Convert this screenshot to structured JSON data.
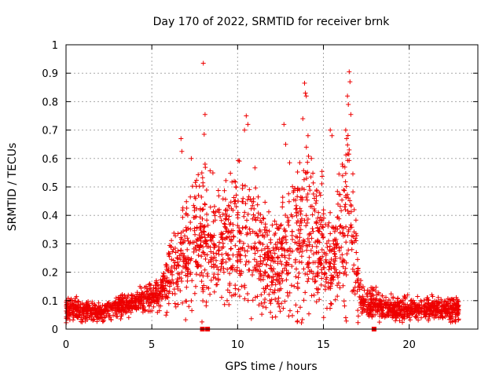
{
  "chart_data": {
    "type": "scatter",
    "title": "Day 170 of 2022, SRMTID for receiver brnk",
    "xlabel": "GPS time / hours",
    "ylabel": "SRMTID / TECUs",
    "xlim": [
      0,
      24
    ],
    "ylim": [
      0,
      1
    ],
    "x_ticks": [
      0,
      5,
      10,
      15,
      20
    ],
    "y_ticks": [
      0,
      0.1,
      0.2,
      0.3,
      0.4,
      0.5,
      0.6,
      0.7,
      0.8,
      0.9,
      1
    ],
    "x_tick_labels": [
      "0",
      "5",
      "10",
      "15",
      "20"
    ],
    "y_tick_labels": [
      "0",
      "0.1",
      "0.2",
      "0.3",
      "0.4",
      "0.5",
      "0.6",
      "0.7",
      "0.8",
      "0.9",
      "1"
    ],
    "grid": true,
    "marker": "+",
    "color": "#ee0000",
    "time_span_hours": [
      0,
      22.9
    ],
    "envelope": [
      {
        "t": 0.0,
        "median": 0.07,
        "spread": 0.04
      },
      {
        "t": 2.0,
        "median": 0.06,
        "spread": 0.035
      },
      {
        "t": 4.0,
        "median": 0.09,
        "spread": 0.04
      },
      {
        "t": 5.5,
        "median": 0.13,
        "spread": 0.06
      },
      {
        "t": 6.5,
        "median": 0.22,
        "spread": 0.15
      },
      {
        "t": 7.5,
        "median": 0.32,
        "spread": 0.22
      },
      {
        "t": 9.0,
        "median": 0.28,
        "spread": 0.2
      },
      {
        "t": 10.5,
        "median": 0.35,
        "spread": 0.26
      },
      {
        "t": 12.0,
        "median": 0.2,
        "spread": 0.15
      },
      {
        "t": 14.0,
        "median": 0.36,
        "spread": 0.3
      },
      {
        "t": 15.5,
        "median": 0.22,
        "spread": 0.15
      },
      {
        "t": 16.5,
        "median": 0.4,
        "spread": 0.3
      },
      {
        "t": 17.2,
        "median": 0.1,
        "spread": 0.06
      },
      {
        "t": 19.0,
        "median": 0.07,
        "spread": 0.04
      },
      {
        "t": 22.9,
        "median": 0.07,
        "spread": 0.04
      }
    ],
    "points_per_hour": 110,
    "notable_points": [
      {
        "x": 8.0,
        "y": 0.935
      },
      {
        "x": 8.1,
        "y": 0.755
      },
      {
        "x": 8.05,
        "y": 0.685
      },
      {
        "x": 6.7,
        "y": 0.67
      },
      {
        "x": 6.75,
        "y": 0.625
      },
      {
        "x": 7.3,
        "y": 0.6
      },
      {
        "x": 8.1,
        "y": 0.58
      },
      {
        "x": 10.5,
        "y": 0.75
      },
      {
        "x": 10.6,
        "y": 0.72
      },
      {
        "x": 10.4,
        "y": 0.7
      },
      {
        "x": 9.9,
        "y": 0.5
      },
      {
        "x": 12.7,
        "y": 0.72
      },
      {
        "x": 12.8,
        "y": 0.65
      },
      {
        "x": 13.9,
        "y": 0.865
      },
      {
        "x": 13.95,
        "y": 0.83
      },
      {
        "x": 14.0,
        "y": 0.82
      },
      {
        "x": 13.8,
        "y": 0.74
      },
      {
        "x": 14.1,
        "y": 0.68
      },
      {
        "x": 14.3,
        "y": 0.6
      },
      {
        "x": 16.5,
        "y": 0.905
      },
      {
        "x": 16.55,
        "y": 0.87
      },
      {
        "x": 16.4,
        "y": 0.82
      },
      {
        "x": 16.45,
        "y": 0.79
      },
      {
        "x": 16.6,
        "y": 0.755
      },
      {
        "x": 16.3,
        "y": 0.7
      },
      {
        "x": 16.35,
        "y": 0.67
      },
      {
        "x": 16.5,
        "y": 0.63
      },
      {
        "x": 16.1,
        "y": 0.58
      },
      {
        "x": 15.4,
        "y": 0.7
      },
      {
        "x": 15.5,
        "y": 0.68
      },
      {
        "x": 17.6,
        "y": 0.05
      },
      {
        "x": 16.3,
        "y": 0.04
      }
    ],
    "gap_markers": [
      {
        "x": 7.95,
        "y": 0
      },
      {
        "x": 8.25,
        "y": 0
      },
      {
        "x": 17.95,
        "y": 0
      }
    ]
  }
}
